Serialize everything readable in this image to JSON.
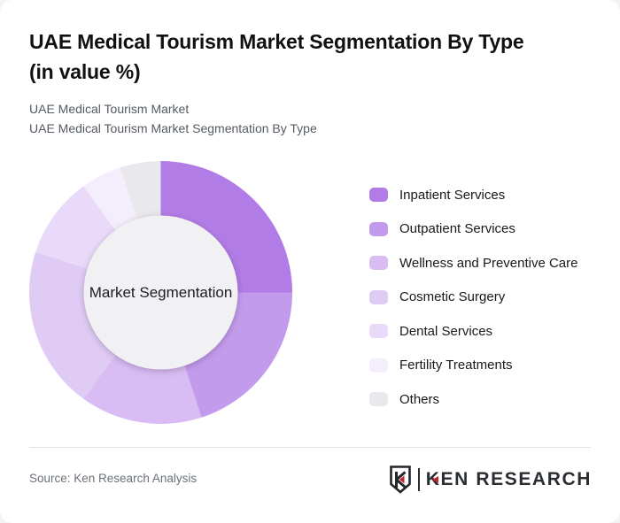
{
  "header": {
    "title_line1": "UAE Medical Tourism Market Segmentation By Type",
    "title_line2": "(in value %)",
    "subtitle_line1": "UAE Medical Tourism Market",
    "subtitle_line2": "UAE Medical Tourism Market Segmentation By Type"
  },
  "chart_data": {
    "type": "pie",
    "donut": true,
    "title": "UAE Medical Tourism Market Segmentation By Type (in value %)",
    "center_label": "Market Segmentation",
    "categories": [
      "Inpatient Services",
      "Outpatient Services",
      "Wellness and Preventive Care",
      "Cosmetic Surgery",
      "Dental Services",
      "Fertility Treatments",
      "Others"
    ],
    "values": [
      25,
      20,
      15,
      20,
      10,
      5,
      5
    ],
    "value_labels_shown": false,
    "colors": [
      "#b27ce7",
      "#c39bec",
      "#d8bcf3",
      "#e0cbf5",
      "#e9daf9",
      "#f4edfc",
      "#e9e8ec"
    ],
    "inner_circle_color": "#f1f0f2",
    "start_angle_deg": 0,
    "direction": "clockwise",
    "legend_position": "right"
  },
  "footer": {
    "source": "Source: Ken Research Analysis",
    "logo": {
      "emblem_letter": "K",
      "wordmark": "KEN RESEARCH",
      "accent_color": "#c3272e",
      "text_color": "#2a2e33"
    }
  }
}
